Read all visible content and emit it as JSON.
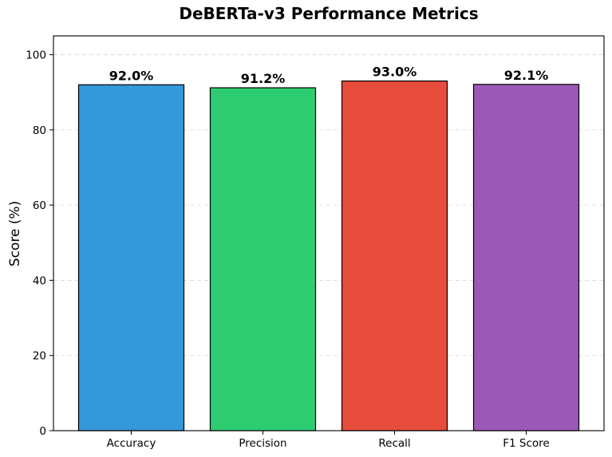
{
  "chart_data": {
    "type": "bar",
    "title": "DeBERTa-v3 Performance Metrics",
    "xlabel": "",
    "ylabel": "Score (%)",
    "ylim": [
      0,
      105
    ],
    "yticks": [
      0,
      20,
      40,
      60,
      80,
      100
    ],
    "grid": "horizontal dashed",
    "categories": [
      "Accuracy",
      "Precision",
      "Recall",
      "F1 Score"
    ],
    "values": [
      92.0,
      91.2,
      93.0,
      92.1
    ],
    "data_labels": [
      "92.0%",
      "91.2%",
      "93.0%",
      "92.1%"
    ],
    "colors": [
      "#3498db",
      "#2ecc71",
      "#e74c3c",
      "#9b59b6"
    ]
  }
}
